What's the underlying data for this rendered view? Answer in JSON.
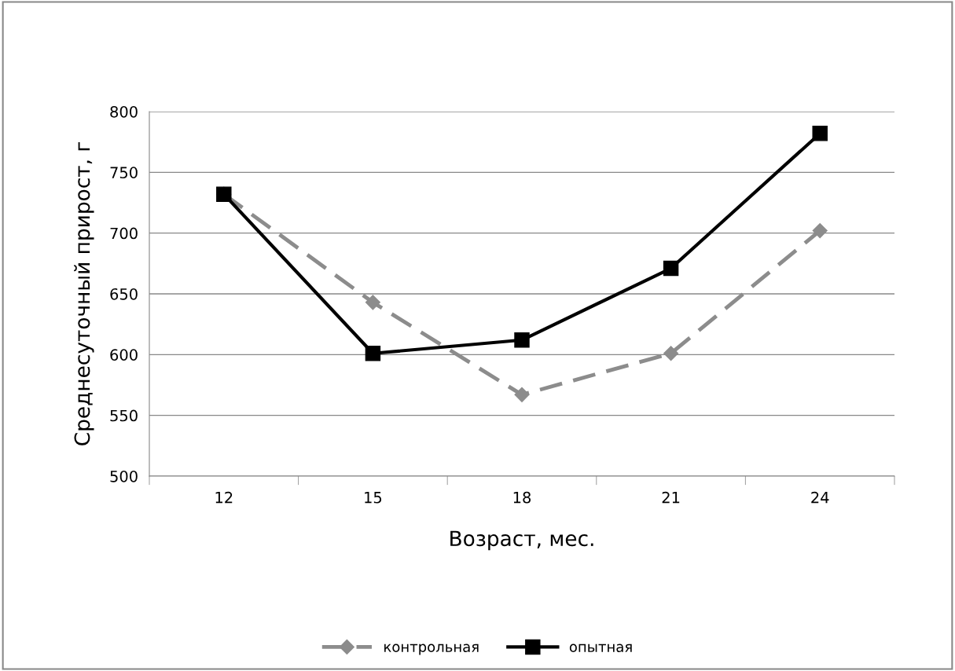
{
  "chart_data": {
    "type": "line",
    "xlabel": "Возраст, мес.",
    "ylabel": "Среднесуточный прирост, г",
    "categories": [
      "12",
      "15",
      "18",
      "21",
      "24"
    ],
    "series": [
      {
        "name": "контрольная",
        "color": "#8c8c8c",
        "values": [
          732,
          643,
          567,
          601,
          702
        ],
        "marker": "diamond",
        "line_style": "dashed"
      },
      {
        "name": "опытная",
        "color": "#000000",
        "values": [
          732,
          601,
          612,
          671,
          782
        ],
        "marker": "square",
        "line_style": "solid"
      }
    ],
    "ylim": [
      500,
      800
    ],
    "yticks": [
      500,
      550,
      600,
      650,
      700,
      750,
      800
    ],
    "grid": "y",
    "legend": "bottom"
  }
}
